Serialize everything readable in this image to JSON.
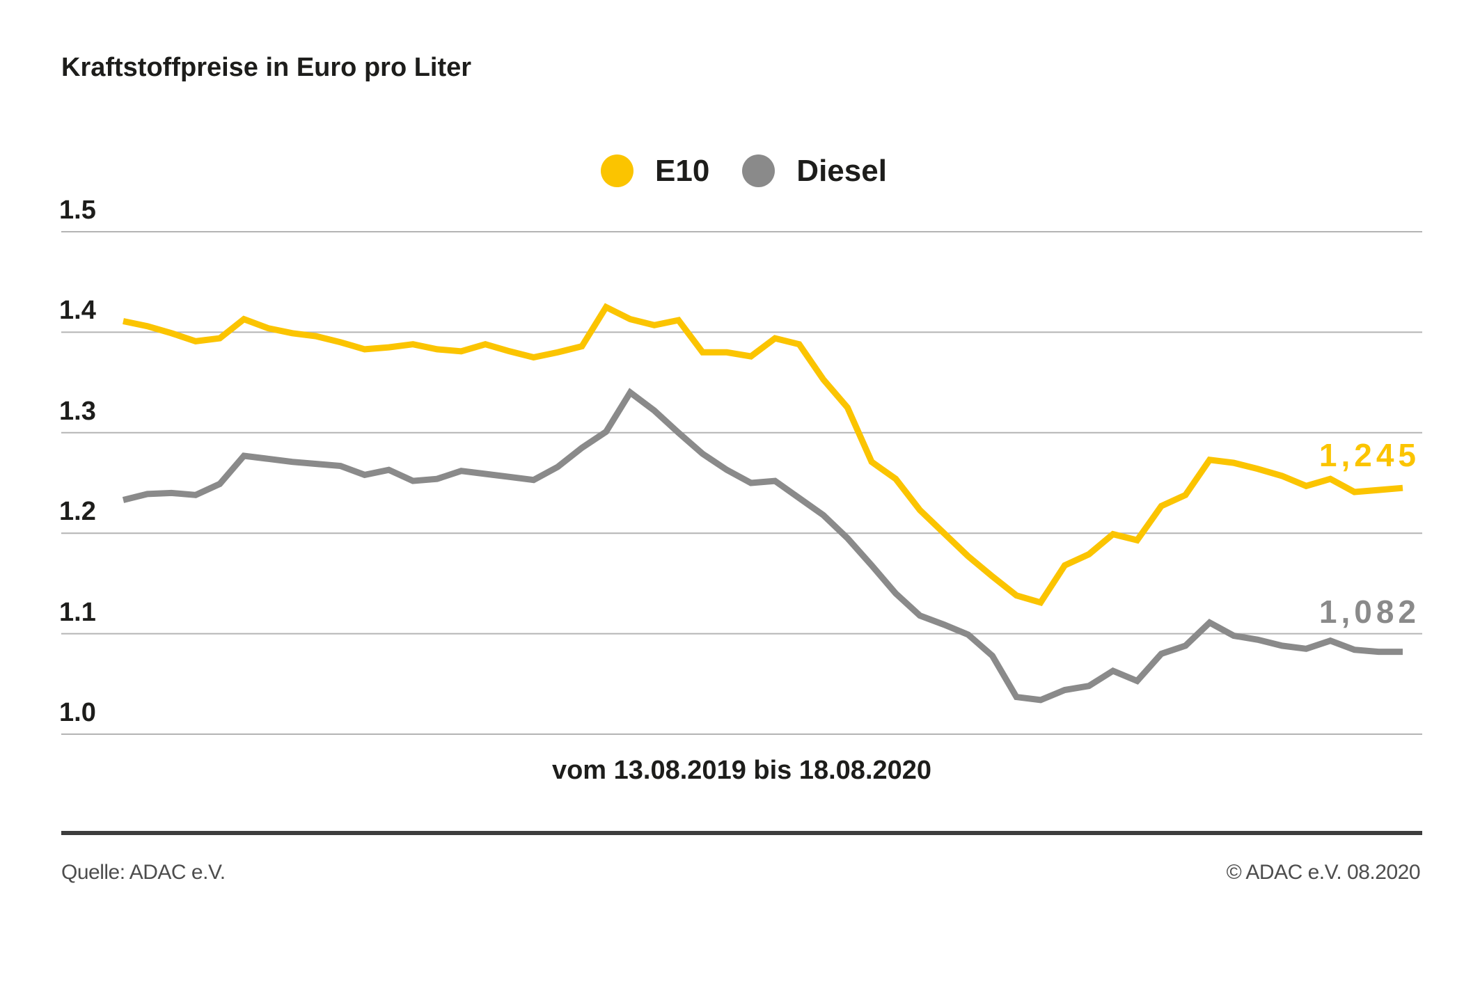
{
  "title": "Kraftstoffpreise in Euro pro Liter",
  "legend": [
    {
      "label": "E10",
      "color": "#FBC400",
      "icon": "yellow-dot"
    },
    {
      "label": "Diesel",
      "color": "#8A8A8A",
      "icon": "gray-dot"
    }
  ],
  "x_axis_label": "vom 13.08.2019 bis 18.08.2020",
  "footer": {
    "source": "Quelle: ADAC e.V.",
    "copyright": "© ADAC e.V. 08.2020"
  },
  "colors": {
    "e10": "#FBC400",
    "diesel": "#8A8A8A",
    "gridline": "#b4b4b4",
    "text": "#1d1d1b",
    "footer_text": "#4d4d4d",
    "divider": "#3d3d3d"
  },
  "chart_data": {
    "type": "line",
    "title": "Kraftstoffpreise in Euro pro Liter",
    "xlabel": "vom 13.08.2019 bis 18.08.2020",
    "ylabel": "Euro pro Liter",
    "x_description": "weekly prices from 13.08.2019 to 18.08.2020 (54 points)",
    "ylim": [
      0.97,
      1.53
    ],
    "yticks": [
      "1.5",
      "1.4",
      "1.3",
      "1.2",
      "1.1",
      "1.0"
    ],
    "grid": true,
    "legend_position": "top-center",
    "series": [
      {
        "name": "E10",
        "color": "#FBC400",
        "end_label": "1,245",
        "end_value": 1.245,
        "values": [
          1.411,
          1.406,
          1.399,
          1.391,
          1.394,
          1.413,
          1.404,
          1.399,
          1.396,
          1.39,
          1.383,
          1.385,
          1.388,
          1.383,
          1.381,
          1.388,
          1.381,
          1.375,
          1.38,
          1.386,
          1.425,
          1.413,
          1.407,
          1.412,
          1.38,
          1.38,
          1.376,
          1.394,
          1.388,
          1.353,
          1.325,
          1.271,
          1.254,
          1.223,
          1.2,
          1.177,
          1.157,
          1.138,
          1.131,
          1.168,
          1.179,
          1.199,
          1.193,
          1.227,
          1.238,
          1.273,
          1.27,
          1.264,
          1.257,
          1.247,
          1.254,
          1.241,
          1.243,
          1.245
        ]
      },
      {
        "name": "Diesel",
        "color": "#8A8A8A",
        "end_label": "1,082",
        "end_value": 1.082,
        "values": [
          1.233,
          1.239,
          1.24,
          1.238,
          1.249,
          1.277,
          1.274,
          1.271,
          1.269,
          1.267,
          1.258,
          1.263,
          1.252,
          1.254,
          1.262,
          1.259,
          1.256,
          1.253,
          1.266,
          1.285,
          1.301,
          1.34,
          1.322,
          1.3,
          1.279,
          1.263,
          1.25,
          1.252,
          1.235,
          1.218,
          1.195,
          1.168,
          1.14,
          1.118,
          1.109,
          1.099,
          1.078,
          1.037,
          1.034,
          1.044,
          1.048,
          1.063,
          1.053,
          1.08,
          1.088,
          1.111,
          1.098,
          1.094,
          1.088,
          1.085,
          1.093,
          1.084,
          1.082,
          1.082
        ]
      }
    ]
  }
}
